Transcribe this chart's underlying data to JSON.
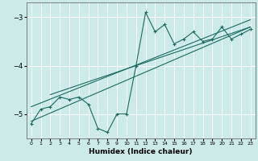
{
  "xlabel": "Humidex (Indice chaleur)",
  "ylabel": "",
  "background_color": "#cceae8",
  "grid_color": "#ffffff",
  "line_color": "#1a6b5e",
  "xlim": [
    -0.5,
    23.5
  ],
  "ylim": [
    -5.5,
    -2.7
  ],
  "xticks": [
    0,
    1,
    2,
    3,
    4,
    5,
    6,
    7,
    8,
    9,
    10,
    11,
    12,
    13,
    14,
    15,
    16,
    17,
    18,
    19,
    20,
    21,
    22,
    23
  ],
  "yticks": [
    -5,
    -4,
    -3
  ],
  "scatter_x": [
    0,
    1,
    2,
    3,
    4,
    5,
    6,
    7,
    8,
    9,
    10,
    11,
    12,
    13,
    14,
    15,
    16,
    17,
    18,
    19,
    20,
    21,
    22,
    23
  ],
  "scatter_y": [
    -5.2,
    -4.9,
    -4.85,
    -4.65,
    -4.7,
    -4.65,
    -4.8,
    -5.3,
    -5.38,
    -5.0,
    -5.0,
    -4.0,
    -2.9,
    -3.3,
    -3.15,
    -3.55,
    -3.45,
    -3.3,
    -3.5,
    -3.45,
    -3.2,
    -3.45,
    -3.35,
    -3.25
  ],
  "trend1_x": [
    0,
    23
  ],
  "trend1_y": [
    -5.15,
    -3.2
  ],
  "trend2_x": [
    0,
    23
  ],
  "trend2_y": [
    -4.85,
    -3.05
  ],
  "trend3_x": [
    2,
    23
  ],
  "trend3_y": [
    -4.6,
    -3.2
  ]
}
